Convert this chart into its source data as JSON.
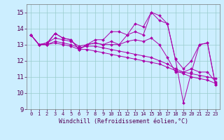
{
  "xlabel": "Windchill (Refroidissement éolien,°C)",
  "ylabel": "",
  "background_color": "#cceeff",
  "line_color": "#aa00aa",
  "grid_color": "#99cccc",
  "xlim": [
    -0.5,
    23.5
  ],
  "ylim": [
    9,
    15.5
  ],
  "yticks": [
    9,
    10,
    11,
    12,
    13,
    14,
    15
  ],
  "xticks": [
    0,
    1,
    2,
    3,
    4,
    5,
    6,
    7,
    8,
    9,
    10,
    11,
    12,
    13,
    14,
    15,
    16,
    17,
    18,
    19,
    20,
    21,
    22,
    23
  ],
  "series": [
    [
      13.6,
      13.0,
      13.0,
      13.7,
      13.4,
      13.3,
      12.7,
      13.0,
      13.1,
      13.0,
      13.2,
      13.0,
      13.6,
      13.8,
      13.6,
      15.0,
      14.5,
      14.3,
      12.1,
      11.5,
      12.0,
      13.0,
      13.1,
      10.5
    ],
    [
      13.6,
      13.0,
      13.1,
      13.7,
      13.4,
      13.3,
      12.7,
      13.0,
      13.3,
      13.3,
      13.8,
      13.8,
      13.6,
      14.3,
      14.1,
      15.0,
      14.8,
      14.3,
      12.1,
      9.4,
      11.3,
      13.0,
      13.1,
      10.5
    ],
    [
      13.6,
      13.0,
      13.1,
      13.4,
      13.3,
      13.2,
      12.9,
      13.0,
      13.1,
      13.0,
      13.0,
      13.0,
      13.2,
      13.3,
      13.2,
      13.4,
      13.0,
      12.2,
      11.3,
      11.3,
      11.5,
      11.3,
      11.3,
      10.7
    ],
    [
      13.6,
      13.0,
      13.0,
      13.2,
      13.1,
      13.0,
      12.8,
      12.9,
      12.9,
      12.8,
      12.7,
      12.6,
      12.5,
      12.4,
      12.3,
      12.2,
      12.0,
      11.8,
      11.5,
      11.3,
      11.2,
      11.1,
      11.0,
      10.9
    ],
    [
      13.6,
      13.0,
      13.0,
      13.1,
      13.0,
      12.9,
      12.7,
      12.7,
      12.6,
      12.5,
      12.4,
      12.3,
      12.2,
      12.1,
      12.0,
      11.9,
      11.8,
      11.6,
      11.4,
      11.2,
      11.0,
      10.9,
      10.8,
      10.6
    ]
  ],
  "spine_color": "#777777",
  "tick_color": "#550055",
  "xlabel_color": "#550055",
  "xlabel_fontsize": 6.0,
  "ytick_fontsize": 6.5,
  "xtick_fontsize": 5.0,
  "linewidth": 0.7,
  "markersize": 2.0
}
